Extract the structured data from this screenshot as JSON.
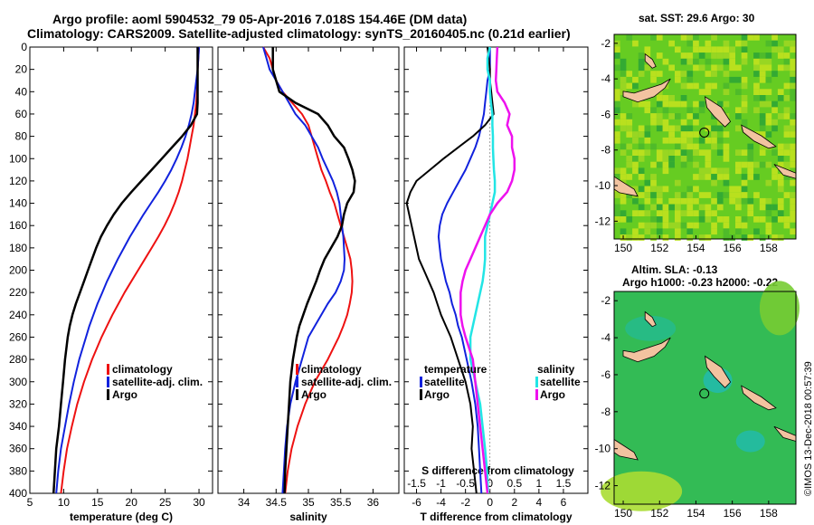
{
  "titles": {
    "line1": "Argo profile: aoml 5904532_79 05-Apr-2016 7.018S 154.46E (DM data)",
    "line2": "Climatology: CARS2009. Satellite-adjusted climatology: synTS_20160405.nc (0.21d earlier)",
    "sst_map": "sat. SST: 29.6 Argo: 30",
    "sla_map_1": "Altim. SLA: -0.13",
    "sla_map_2": "Argo h1000: -0.23 h2000: -0.22",
    "credit": "©IMOS 13-Dec-2018 00:57:39"
  },
  "colors": {
    "climatology": "#ee1111",
    "satellite": "#1122dd",
    "argo": "#000000",
    "sal_sat": "#22e5e5",
    "sal_argo": "#ee11ee"
  },
  "chart_data": [
    {
      "type": "line",
      "title": "temperature",
      "xlabel": "temperature (deg C)",
      "ylabel": "depth",
      "xlim": [
        5,
        32
      ],
      "ylim": [
        400,
        0
      ],
      "xticks": [
        "5",
        "10",
        "15",
        "20",
        "25",
        "30"
      ],
      "yticks": [
        "0",
        "20",
        "40",
        "60",
        "80",
        "100",
        "120",
        "140",
        "160",
        "180",
        "200",
        "220",
        "240",
        "260",
        "280",
        "300",
        "320",
        "340",
        "360",
        "380",
        "400"
      ],
      "legend": [
        "climatology",
        "satellite-adj. clim.",
        "Argo"
      ],
      "depths": [
        0,
        10,
        20,
        30,
        40,
        50,
        60,
        70,
        80,
        90,
        100,
        110,
        120,
        130,
        140,
        150,
        160,
        170,
        180,
        190,
        200,
        210,
        220,
        230,
        240,
        250,
        260,
        280,
        300,
        320,
        340,
        360,
        380,
        400
      ],
      "series": [
        {
          "name": "climatology",
          "values": [
            30.0,
            29.9,
            29.8,
            29.8,
            29.7,
            29.6,
            29.4,
            29.2,
            28.9,
            28.6,
            28.3,
            27.9,
            27.5,
            27.0,
            26.4,
            25.7,
            24.9,
            24.0,
            23.0,
            22.0,
            21.0,
            20.0,
            19.0,
            18.1,
            17.2,
            16.4,
            15.6,
            14.2,
            13.0,
            12.0,
            11.2,
            10.5,
            10.0,
            9.6
          ]
        },
        {
          "name": "satellite-adj. clim.",
          "values": [
            30.0,
            29.9,
            29.8,
            29.6,
            29.4,
            29.2,
            28.9,
            28.5,
            28.0,
            27.4,
            26.7,
            25.9,
            25.0,
            24.0,
            22.9,
            21.8,
            20.8,
            19.8,
            18.9,
            18.0,
            17.2,
            16.4,
            15.7,
            15.0,
            14.4,
            13.8,
            13.3,
            12.3,
            11.5,
            10.8,
            10.2,
            9.6,
            9.2,
            8.9
          ]
        },
        {
          "name": "Argo",
          "values": [
            29.8,
            29.8,
            29.8,
            29.8,
            29.8,
            29.8,
            29.7,
            28.8,
            27.5,
            26.0,
            24.5,
            23.0,
            21.5,
            20.0,
            18.6,
            17.4,
            16.4,
            15.5,
            14.8,
            14.2,
            13.6,
            13.0,
            12.4,
            11.8,
            11.3,
            10.9,
            10.6,
            10.2,
            9.9,
            9.6,
            9.3,
            8.9,
            8.7,
            8.5
          ]
        }
      ]
    },
    {
      "type": "line",
      "title": "salinity",
      "xlabel": "salinity",
      "ylabel": "depth",
      "xlim": [
        33.6,
        36.4
      ],
      "ylim": [
        400,
        0
      ],
      "xticks": [
        "34",
        "34.5",
        "35",
        "35.5",
        "36"
      ],
      "legend": [
        "climatology",
        "satellite-adj. clim.",
        "Argo"
      ],
      "depths": [
        0,
        10,
        20,
        30,
        40,
        50,
        60,
        70,
        80,
        90,
        100,
        110,
        120,
        130,
        140,
        150,
        160,
        170,
        180,
        190,
        200,
        210,
        220,
        230,
        240,
        250,
        260,
        280,
        300,
        320,
        340,
        360,
        380,
        400
      ],
      "series": [
        {
          "name": "climatology",
          "values": [
            34.3,
            34.4,
            34.45,
            34.5,
            34.6,
            34.75,
            34.9,
            35.0,
            35.05,
            35.1,
            35.15,
            35.2,
            35.27,
            35.33,
            35.4,
            35.45,
            35.5,
            35.55,
            35.6,
            35.65,
            35.67,
            35.68,
            35.67,
            35.64,
            35.6,
            35.54,
            35.47,
            35.3,
            35.1,
            34.95,
            34.83,
            34.74,
            34.68,
            34.64
          ]
        },
        {
          "name": "satellite-adj. clim.",
          "values": [
            34.3,
            34.35,
            34.4,
            34.5,
            34.6,
            34.7,
            34.8,
            34.95,
            35.05,
            35.15,
            35.22,
            35.3,
            35.38,
            35.44,
            35.48,
            35.5,
            35.52,
            35.54,
            35.55,
            35.56,
            35.55,
            35.5,
            35.42,
            35.3,
            35.2,
            35.1,
            35.0,
            34.9,
            34.8,
            34.72,
            34.67,
            34.64,
            34.62,
            34.6
          ]
        },
        {
          "name": "Argo",
          "values": [
            34.45,
            34.45,
            34.45,
            34.5,
            34.55,
            34.8,
            35.15,
            35.3,
            35.4,
            35.55,
            35.62,
            35.68,
            35.72,
            35.7,
            35.6,
            35.55,
            35.52,
            35.45,
            35.35,
            35.25,
            35.18,
            35.12,
            35.05,
            34.98,
            34.92,
            34.86,
            34.82,
            34.76,
            34.72,
            34.7,
            34.68,
            34.66,
            34.64,
            34.63
          ]
        }
      ]
    },
    {
      "type": "line",
      "title": "differences",
      "xlabel": "T difference from climatology",
      "xlabel_top": "S difference from climatology",
      "xlim": [
        -7,
        8
      ],
      "ylim": [
        400,
        0
      ],
      "xticks": [
        "-6",
        "-4",
        "-2",
        "0",
        "2",
        "4",
        "6"
      ],
      "xticks_top": [
        "-1.5",
        "-1",
        "-0.5",
        "0",
        "0.5",
        "1",
        "1.5"
      ],
      "legend_left_title": "temperature",
      "legend_left": [
        "satellite",
        "Argo"
      ],
      "legend_right_title": "salinity",
      "legend_right": [
        "satellite",
        "Argo"
      ],
      "depths": [
        0,
        10,
        20,
        30,
        40,
        50,
        60,
        70,
        80,
        90,
        100,
        110,
        120,
        130,
        140,
        150,
        160,
        170,
        180,
        190,
        200,
        210,
        220,
        230,
        240,
        250,
        260,
        280,
        300,
        320,
        340,
        360,
        380,
        400
      ],
      "series": [
        {
          "name": "temperature satellite",
          "values": [
            0,
            0,
            0,
            -0.2,
            -0.3,
            -0.4,
            -0.5,
            -0.7,
            -0.9,
            -1.2,
            -1.6,
            -2.0,
            -2.5,
            -3.0,
            -3.5,
            -3.9,
            -4.1,
            -4.2,
            -4.1,
            -4.0,
            -3.8,
            -3.6,
            -3.3,
            -3.1,
            -2.8,
            -2.6,
            -2.3,
            -1.9,
            -1.5,
            -1.2,
            -1.0,
            -0.9,
            -0.8,
            -0.7
          ]
        },
        {
          "name": "temperature Argo",
          "values": [
            -0.2,
            -0.1,
            0,
            0,
            0.1,
            0.2,
            0.3,
            -0.4,
            -1.4,
            -2.6,
            -3.8,
            -4.9,
            -6.0,
            -6.5,
            -6.8,
            -6.6,
            -6.4,
            -6.2,
            -6.0,
            -5.8,
            -5.4,
            -5.0,
            -4.6,
            -4.3,
            -4.0,
            -3.6,
            -3.2,
            -2.6,
            -2.0,
            -1.6,
            -1.4,
            -1.5,
            -1.3,
            -1.1
          ]
        },
        {
          "name": "salinity satellite",
          "values": [
            0,
            -0.05,
            -0.05,
            0,
            0,
            0.02,
            0.05,
            0.05,
            0.06,
            0.06,
            0.07,
            0.08,
            0.1,
            0.1,
            0.05,
            0,
            -0.05,
            -0.1,
            -0.1,
            -0.1,
            -0.12,
            -0.15,
            -0.2,
            -0.25,
            -0.3,
            -0.35,
            -0.4,
            -0.4,
            -0.3,
            -0.2,
            -0.15,
            -0.1,
            -0.06,
            -0.04
          ]
        },
        {
          "name": "salinity Argo",
          "values": [
            0.15,
            0.14,
            0.13,
            0.12,
            0.15,
            0.3,
            0.4,
            0.35,
            0.45,
            0.45,
            0.5,
            0.5,
            0.45,
            0.35,
            0.15,
            0,
            -0.1,
            -0.2,
            -0.3,
            -0.4,
            -0.5,
            -0.56,
            -0.6,
            -0.6,
            -0.6,
            -0.56,
            -0.5,
            -0.35,
            -0.3,
            -0.25,
            -0.2,
            -0.15,
            -0.1,
            -0.05
          ]
        }
      ]
    },
    {
      "type": "heatmap",
      "title": "sat. SST: 29.6 Argo: 30",
      "xlim": [
        149.5,
        159.5
      ],
      "ylim": [
        -13,
        -1.5
      ],
      "xticks": [
        "150",
        "152",
        "154",
        "156",
        "158"
      ],
      "yticks": [
        "-2",
        "-4",
        "-6",
        "-8",
        "-10",
        "-12"
      ],
      "argo_location": {
        "lon": 154.46,
        "lat": -7.018
      }
    },
    {
      "type": "heatmap",
      "title": "Altim. SLA: -0.13",
      "xlim": [
        149.5,
        159.5
      ],
      "ylim": [
        -13,
        -1.5
      ],
      "xticks": [
        "150",
        "152",
        "154",
        "156",
        "158"
      ],
      "yticks": [
        "-2",
        "-4",
        "-6",
        "-8",
        "-10",
        "-12"
      ],
      "argo_location": {
        "lon": 154.46,
        "lat": -7.018
      }
    }
  ]
}
